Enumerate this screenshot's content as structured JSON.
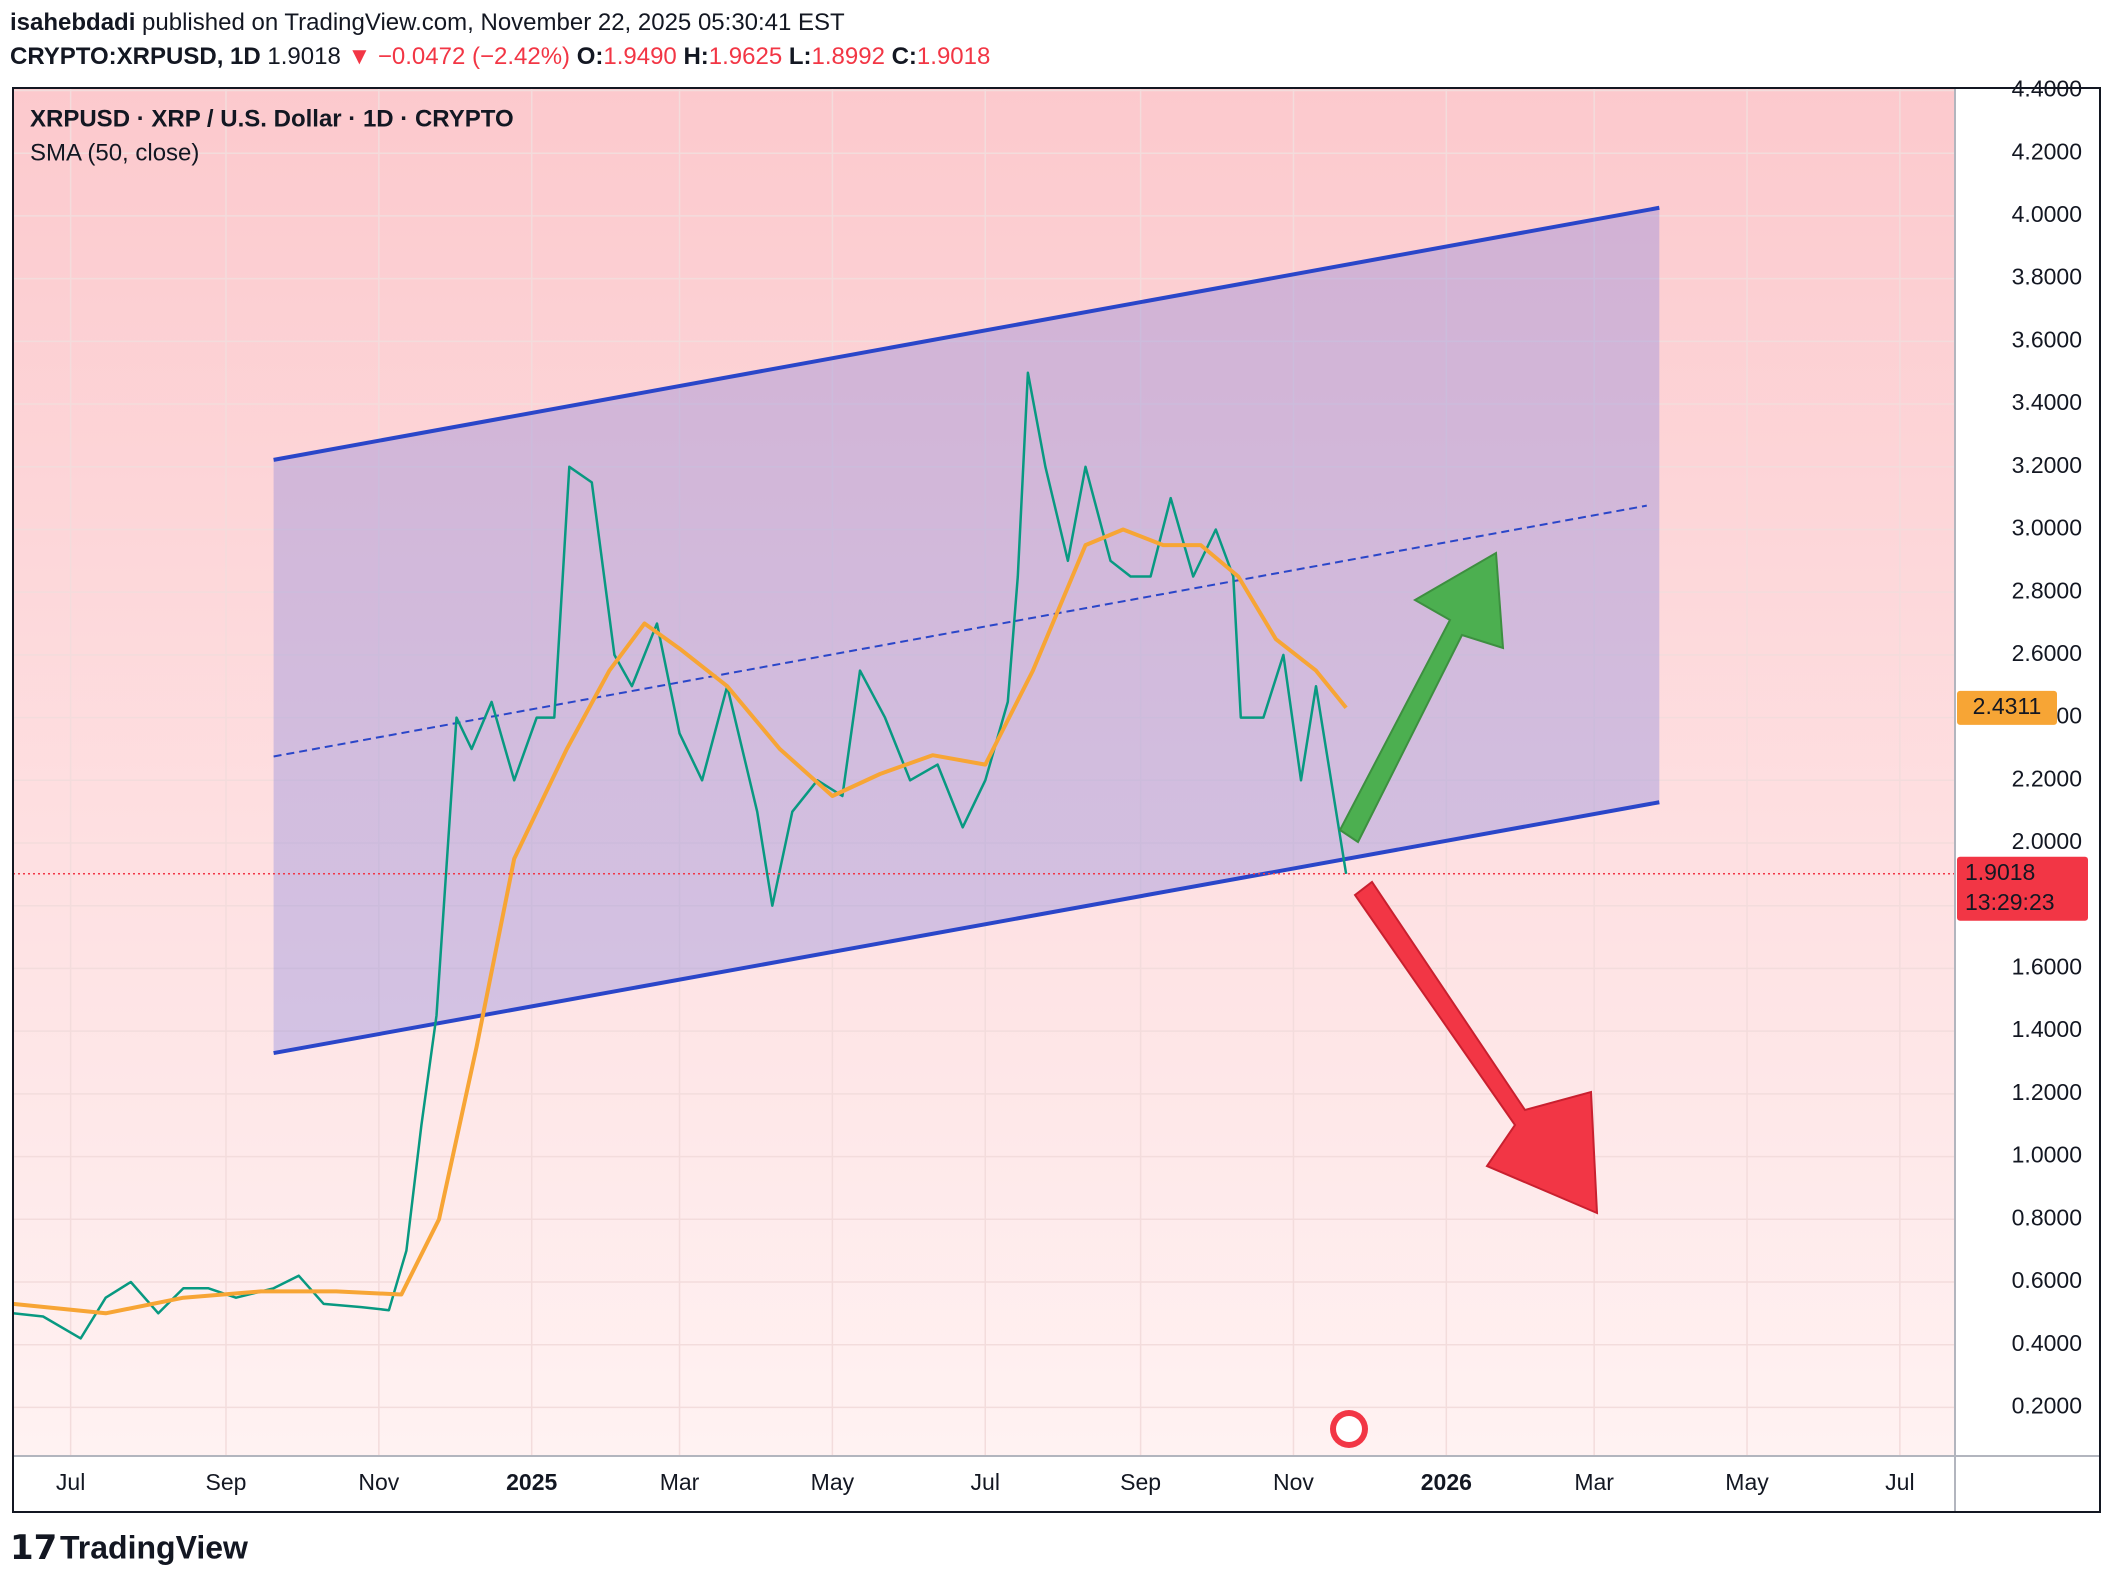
{
  "header": {
    "publisher": "isahebdadi",
    "published": "published on TradingView.com, November 22, 2025 05:30:41 EST",
    "symbol": "CRYPTO:XRPUSD, 1D",
    "change": "▼ −0.0472 (−2.42%)",
    "ohlc": [
      {
        "label": "O:",
        "value": "1.9490"
      },
      {
        "label": "H:",
        "value": "1.9625"
      },
      {
        "label": "L:",
        "value": "1.8992"
      },
      {
        "label": "C:",
        "value": "1.9018"
      }
    ]
  },
  "footer": {
    "brand": "TradingView"
  },
  "chart_data": {
    "type": "line",
    "grid": true,
    "countdown": "13:29:23",
    "xlim": [
      "2024-06-08",
      "2026-07-23"
    ],
    "xticks": [
      {
        "value": "2024-07-01",
        "label": "Jul"
      },
      {
        "value": "2024-09-01",
        "label": "Sep"
      },
      {
        "value": "2024-11-01",
        "label": "Nov"
      },
      {
        "value": "2025-01-01",
        "label": "2025"
      },
      {
        "value": "2025-03-01",
        "label": "Mar"
      },
      {
        "value": "2025-05-01",
        "label": "May"
      },
      {
        "value": "2025-07-01",
        "label": "Jul"
      },
      {
        "value": "2025-09-01",
        "label": "Sep"
      },
      {
        "value": "2025-11-01",
        "label": "Nov"
      },
      {
        "value": "2026-01-01",
        "label": "2026"
      },
      {
        "value": "2026-03-01",
        "label": "Mar"
      },
      {
        "value": "2026-05-01",
        "label": "May"
      },
      {
        "value": "2026-07-01",
        "label": "Jul"
      }
    ],
    "ylim": [
      0.045,
      4.408
    ],
    "yticks": [
      {
        "value": 0.2,
        "label": "0.2000"
      },
      {
        "value": 0.4,
        "label": "0.4000"
      },
      {
        "value": 0.6,
        "label": "0.6000"
      },
      {
        "value": 0.8,
        "label": "0.8000"
      },
      {
        "value": 1.0,
        "label": "1.0000"
      },
      {
        "value": 1.2,
        "label": "1.2000"
      },
      {
        "value": 1.4,
        "label": "1.4000"
      },
      {
        "value": 1.6,
        "label": "1.6000"
      },
      {
        "value": 1.8,
        "label": "1.8000"
      },
      {
        "value": 2.0,
        "label": "2.0000"
      },
      {
        "value": 2.2,
        "label": "2.2000"
      },
      {
        "value": 2.4,
        "label": "2.4000"
      },
      {
        "value": 2.6,
        "label": "2.6000"
      },
      {
        "value": 2.8,
        "label": "2.8000"
      },
      {
        "value": 3.0,
        "label": "3.0000"
      },
      {
        "value": 3.2,
        "label": "3.2000"
      },
      {
        "value": 3.4,
        "label": "3.4000"
      },
      {
        "value": 3.6,
        "label": "3.6000"
      },
      {
        "value": 3.8,
        "label": "3.8000"
      },
      {
        "value": 4.0,
        "label": "4.0000"
      },
      {
        "value": 4.2,
        "label": "4.2000"
      },
      {
        "value": 4.4,
        "label": "4.4000"
      }
    ],
    "series": [
      {
        "name": "XRPUSD · XRP / U.S. Dollar · 1D · CRYPTO",
        "color": "#089981",
        "x": [
          "2024-06-08",
          "2024-06-20",
          "2024-07-05",
          "2024-07-15",
          "2024-07-25",
          "2024-08-05",
          "2024-08-15",
          "2024-08-25",
          "2024-09-05",
          "2024-09-20",
          "2024-09-30",
          "2024-10-10",
          "2024-10-25",
          "2024-11-05",
          "2024-11-12",
          "2024-11-18",
          "2024-11-24",
          "2024-12-02",
          "2024-12-08",
          "2024-12-16",
          "2024-12-25",
          "2025-01-03",
          "2025-01-10",
          "2025-01-16",
          "2025-01-25",
          "2025-02-03",
          "2025-02-10",
          "2025-02-20",
          "2025-03-01",
          "2025-03-10",
          "2025-03-20",
          "2025-04-01",
          "2025-04-07",
          "2025-04-15",
          "2025-04-25",
          "2025-05-05",
          "2025-05-12",
          "2025-05-22",
          "2025-06-01",
          "2025-06-12",
          "2025-06-22",
          "2025-07-01",
          "2025-07-10",
          "2025-07-14",
          "2025-07-18",
          "2025-07-25",
          "2025-08-03",
          "2025-08-10",
          "2025-08-20",
          "2025-08-28",
          "2025-09-05",
          "2025-09-13",
          "2025-09-22",
          "2025-10-01",
          "2025-10-08",
          "2025-10-11",
          "2025-10-20",
          "2025-10-28",
          "2025-11-04",
          "2025-11-10",
          "2025-11-16",
          "2025-11-22"
        ],
        "values": [
          0.5,
          0.49,
          0.42,
          0.55,
          0.6,
          0.5,
          0.58,
          0.58,
          0.55,
          0.58,
          0.62,
          0.53,
          0.52,
          0.51,
          0.7,
          1.1,
          1.45,
          2.4,
          2.3,
          2.45,
          2.2,
          2.4,
          2.4,
          3.2,
          3.15,
          2.6,
          2.5,
          2.7,
          2.35,
          2.2,
          2.5,
          2.1,
          1.8,
          2.1,
          2.2,
          2.15,
          2.55,
          2.4,
          2.2,
          2.25,
          2.05,
          2.2,
          2.45,
          2.85,
          3.5,
          3.2,
          2.9,
          3.2,
          2.9,
          2.85,
          2.85,
          3.1,
          2.85,
          3.0,
          2.85,
          2.4,
          2.4,
          2.6,
          2.2,
          2.5,
          2.2,
          1.9018
        ]
      },
      {
        "name": "SMA (50, close)",
        "color": "#f7a535",
        "x": [
          "2024-06-08",
          "2024-07-15",
          "2024-08-15",
          "2024-09-15",
          "2024-10-15",
          "2024-11-10",
          "2024-11-25",
          "2024-12-10",
          "2024-12-25",
          "2025-01-15",
          "2025-02-01",
          "2025-02-15",
          "2025-03-01",
          "2025-03-20",
          "2025-04-10",
          "2025-05-01",
          "2025-05-20",
          "2025-06-10",
          "2025-07-01",
          "2025-07-20",
          "2025-08-10",
          "2025-08-25",
          "2025-09-10",
          "2025-09-25",
          "2025-10-10",
          "2025-10-25",
          "2025-11-10",
          "2025-11-22"
        ],
        "values": [
          0.53,
          0.5,
          0.55,
          0.57,
          0.57,
          0.56,
          0.8,
          1.35,
          1.95,
          2.3,
          2.55,
          2.7,
          2.62,
          2.5,
          2.3,
          2.15,
          2.22,
          2.28,
          2.25,
          2.55,
          2.95,
          3.0,
          2.95,
          2.95,
          2.85,
          2.65,
          2.55,
          2.4311
        ]
      }
    ],
    "channel": {
      "color": "#2a46c9",
      "x": [
        "2024-09-20",
        "2026-03-27"
      ],
      "upper": [
        3.222,
        4.026
      ],
      "lower": [
        1.33,
        2.13
      ],
      "middle_x": [
        "2024-09-20",
        "2026-03-22"
      ],
      "middle": [
        2.276,
        3.076
      ]
    }
  }
}
